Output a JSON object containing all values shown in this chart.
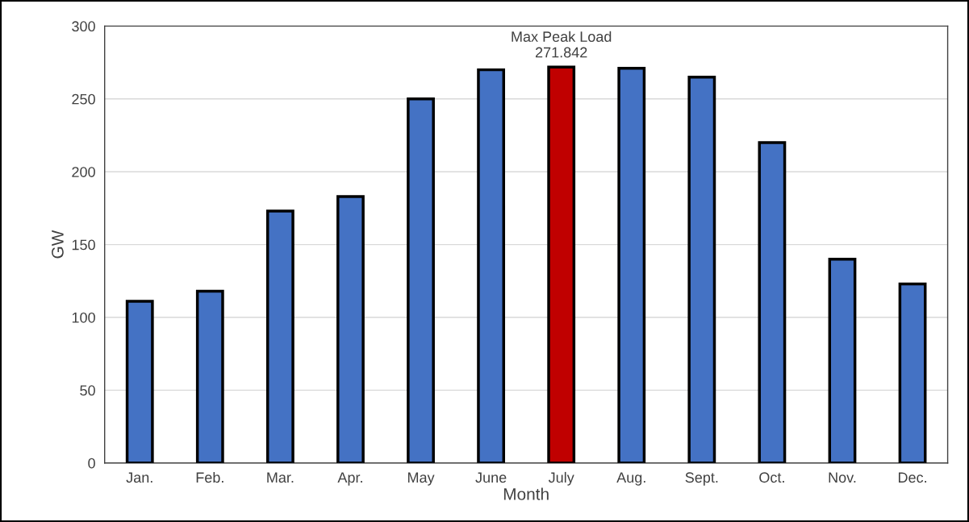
{
  "chart_data": {
    "type": "bar",
    "xlabel": "Month",
    "ylabel": "GW",
    "categories": [
      "Jan.",
      "Feb.",
      "Mar.",
      "Apr.",
      "May",
      "June",
      "July",
      "Aug.",
      "Sept.",
      "Oct.",
      "Nov.",
      "Dec."
    ],
    "values": [
      111,
      118,
      173,
      183,
      250,
      270,
      271.842,
      271,
      265,
      220,
      140,
      123
    ],
    "colors": [
      "#4472c4",
      "#4472c4",
      "#4472c4",
      "#4472c4",
      "#4472c4",
      "#4472c4",
      "#c00000",
      "#4472c4",
      "#4472c4",
      "#4472c4",
      "#4472c4",
      "#4472c4"
    ],
    "ylim": [
      0,
      300
    ],
    "yticks": [
      0,
      50,
      100,
      150,
      200,
      250,
      300
    ],
    "grid": "y",
    "annotations": [
      {
        "text": "Max Peak Load\n271.842",
        "x": "July",
        "y": 271.842
      }
    ]
  }
}
